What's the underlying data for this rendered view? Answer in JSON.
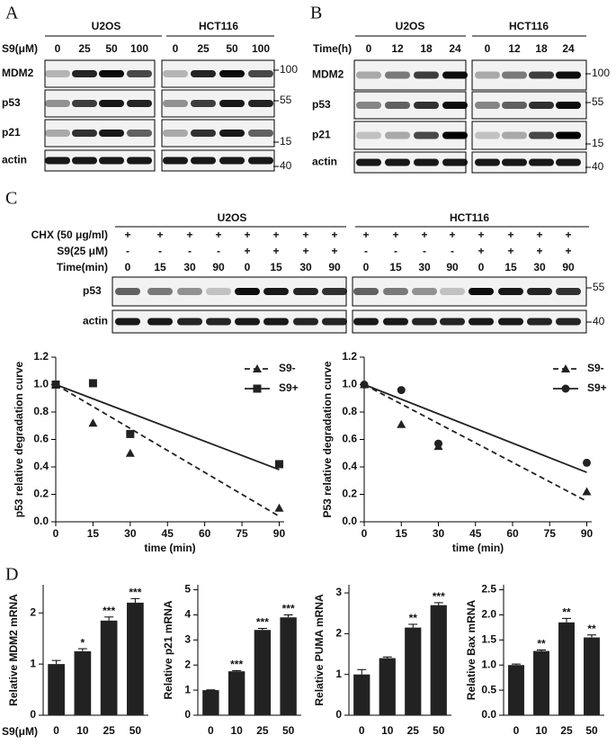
{
  "blots": [
    {
      "letter": "A",
      "groups": [
        "U2OS",
        "HCT116"
      ],
      "treatments": [
        {
          "label": "S9(μM)",
          "lanes": [
            "0",
            "25",
            "50",
            "100"
          ]
        }
      ],
      "rows": [
        "MDM2",
        "p53",
        "p21",
        "actin"
      ],
      "markers": [
        "100",
        "55",
        "15",
        "40"
      ]
    },
    {
      "letter": "B",
      "groups": [
        "U2OS",
        "HCT116"
      ],
      "treatments": [
        {
          "label": "Time(h)",
          "lanes": [
            "0",
            "12",
            "18",
            "24"
          ]
        }
      ],
      "rows": [
        "MDM2",
        "p53",
        "p21",
        "actin"
      ],
      "markers": [
        "100",
        "55",
        "15",
        "40"
      ]
    },
    {
      "letter": "C",
      "groups": [
        "U2OS",
        "HCT116"
      ],
      "treatments": [
        {
          "label": "CHX (50 μg/ml)",
          "lanes": [
            "+",
            "+",
            "+",
            "+",
            "+",
            "+",
            "+",
            "+"
          ]
        },
        {
          "label": "S9(25 μM)",
          "lanes": [
            "-",
            "-",
            "-",
            "-",
            "+",
            "+",
            "+",
            "+"
          ]
        },
        {
          "label": "Time(min)",
          "lanes": [
            "0",
            "15",
            "30",
            "90",
            "0",
            "15",
            "30",
            "90"
          ]
        }
      ],
      "rows": [
        "p53",
        "actin"
      ],
      "markers": [
        "55",
        "40"
      ]
    }
  ],
  "panel_d": {
    "letter": "D",
    "x_label": "S9(μM)"
  },
  "chart_data": [
    {
      "type": "scatter",
      "x_label": "time (min)",
      "y_label": "p53 relative degradation curve",
      "xlim": [
        0,
        92
      ],
      "xticks": [
        0,
        15,
        30,
        45,
        60,
        75,
        90
      ],
      "ylim": [
        0,
        1.2
      ],
      "yticks": [
        {
          "value": 0,
          "label": "0.0"
        },
        {
          "value": 0.2,
          "label": "0.2"
        },
        {
          "value": 0.4,
          "label": "0.4"
        },
        {
          "value": 0.6,
          "label": "0.6"
        },
        {
          "value": 0.8,
          "label": "0.8"
        },
        {
          "value": 1.0,
          "label": "1.0"
        },
        {
          "value": 1.2,
          "label": "1.2"
        }
      ],
      "series": [
        {
          "name": "S9-",
          "color": "#222222",
          "marker": "triangle",
          "line": "dashed",
          "x": [
            0,
            15,
            30,
            90
          ],
          "values": [
            1.0,
            0.72,
            0.5,
            0.1
          ],
          "fit_x": [
            0,
            90
          ],
          "fit_values": [
            1.0,
            0.04
          ]
        },
        {
          "name": "S9+",
          "color": "#222222",
          "marker": "square",
          "line": "solid",
          "x": [
            0,
            15,
            30,
            90
          ],
          "values": [
            1.0,
            1.01,
            0.64,
            0.42
          ],
          "fit_x": [
            0,
            90
          ],
          "fit_values": [
            1.0,
            0.38
          ]
        }
      ]
    },
    {
      "type": "scatter",
      "x_label": "time (min)",
      "y_label": "P53 relative degradation curve",
      "xlim": [
        0,
        92
      ],
      "xticks": [
        0,
        15,
        30,
        45,
        60,
        75,
        90
      ],
      "ylim": [
        0,
        1.2
      ],
      "yticks": [
        {
          "value": 0,
          "label": "0.0"
        },
        {
          "value": 0.2,
          "label": "0.2"
        },
        {
          "value": 0.4,
          "label": "0.4"
        },
        {
          "value": 0.6,
          "label": "0.6"
        },
        {
          "value": 0.8,
          "label": "0.8"
        },
        {
          "value": 1.0,
          "label": "1.0"
        },
        {
          "value": 1.2,
          "label": "1.2"
        }
      ],
      "series": [
        {
          "name": "S9-",
          "color": "#222222",
          "marker": "triangle",
          "line": "dashed",
          "x": [
            0,
            15,
            30,
            90
          ],
          "values": [
            1.0,
            0.71,
            0.55,
            0.22
          ],
          "fit_x": [
            0,
            90
          ],
          "fit_values": [
            1.0,
            0.15
          ]
        },
        {
          "name": "S9+",
          "color": "#222222",
          "marker": "circle",
          "line": "solid",
          "x": [
            0,
            15,
            30,
            90
          ],
          "values": [
            1.0,
            0.96,
            0.57,
            0.43
          ],
          "fit_x": [
            0,
            90
          ],
          "fit_values": [
            1.0,
            0.36
          ]
        }
      ]
    },
    {
      "type": "bar",
      "y_label": "Relative MDM2 mRNA",
      "categories": [
        "0",
        "10",
        "25",
        "50"
      ],
      "color": "#222222",
      "values": [
        1.0,
        1.25,
        1.85,
        2.2
      ],
      "errors": [
        0.07,
        0.05,
        0.07,
        0.08
      ],
      "annotations": [
        null,
        "*",
        "***",
        "***"
      ],
      "ylim": [
        0,
        2.55
      ],
      "yticks": [
        0,
        1,
        2
      ]
    },
    {
      "type": "bar",
      "y_label": "Relative p21 mRNA",
      "categories": [
        "0",
        "10",
        "25",
        "50"
      ],
      "color": "#222222",
      "values": [
        1.0,
        1.75,
        3.4,
        3.9
      ],
      "errors": [
        0.01,
        0.03,
        0.06,
        0.1
      ],
      "annotations": [
        null,
        "***",
        "***",
        "***"
      ],
      "ylim": [
        0,
        5.2
      ],
      "yticks": [
        0,
        1,
        2,
        3,
        4,
        5
      ]
    },
    {
      "type": "bar",
      "y_label": "Relative PUMA mRNA",
      "categories": [
        "0",
        "10",
        "25",
        "50"
      ],
      "color": "#222222",
      "values": [
        1.0,
        1.4,
        2.15,
        2.7
      ],
      "errors": [
        0.12,
        0.03,
        0.08,
        0.06
      ],
      "annotations": [
        null,
        null,
        "**",
        "***"
      ],
      "ylim": [
        0,
        3.2
      ],
      "yticks": [
        0,
        1,
        2,
        3
      ]
    },
    {
      "type": "bar",
      "y_label": "Relative Bax mRNA",
      "categories": [
        "0",
        "10",
        "25",
        "50"
      ],
      "color": "#222222",
      "values": [
        1.0,
        1.28,
        1.85,
        1.55
      ],
      "errors": [
        0.02,
        0.02,
        0.08,
        0.05
      ],
      "annotations": [
        null,
        "**",
        "**",
        "**"
      ],
      "ylim": [
        0,
        2.6
      ],
      "yticks": [
        {
          "value": 0,
          "label": "0.0"
        },
        {
          "value": 0.5,
          "label": "0.5"
        },
        {
          "value": 1.0,
          "label": "1.0"
        },
        {
          "value": 1.5,
          "label": "1.5"
        },
        {
          "value": 2.0,
          "label": "2.0"
        },
        {
          "value": 2.5,
          "label": "2.5"
        }
      ]
    }
  ]
}
